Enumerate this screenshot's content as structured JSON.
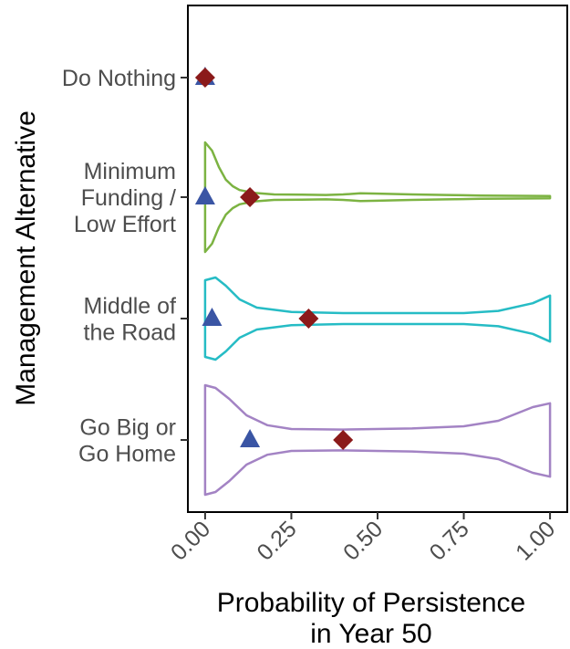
{
  "chart_data": {
    "type": "violin",
    "orientation": "horizontal",
    "xlabel": [
      "Probability of Persistence",
      "in Year 50"
    ],
    "ylabel": "Management Alternative",
    "xlim": [
      -0.05,
      1.05
    ],
    "x_ticks": [
      0.0,
      0.25,
      0.5,
      0.75,
      1.0
    ],
    "x_tick_labels": [
      "0.00",
      "0.25",
      "0.50",
      "0.75",
      "1.00"
    ],
    "grid": false,
    "categories": [
      {
        "label": [
          "Do Nothing"
        ],
        "color": "#4a5f9e",
        "median": 0.0,
        "mean": 0.0,
        "violin": []
      },
      {
        "label": [
          "Minimum",
          "Funding /",
          "Low Effort"
        ],
        "color": "#7cb342",
        "median": 0.0,
        "mean": 0.13,
        "violin": [
          [
            0.0,
            1.0
          ],
          [
            0.02,
            0.85
          ],
          [
            0.04,
            0.55
          ],
          [
            0.06,
            0.32
          ],
          [
            0.08,
            0.2
          ],
          [
            0.1,
            0.13
          ],
          [
            0.14,
            0.08
          ],
          [
            0.2,
            0.05
          ],
          [
            0.28,
            0.045
          ],
          [
            0.35,
            0.04
          ],
          [
            0.4,
            0.05
          ],
          [
            0.45,
            0.07
          ],
          [
            0.5,
            0.065
          ],
          [
            0.6,
            0.05
          ],
          [
            0.7,
            0.04
          ],
          [
            0.8,
            0.03
          ],
          [
            0.9,
            0.025
          ],
          [
            1.0,
            0.02
          ]
        ]
      },
      {
        "label": [
          "Middle of",
          "the Road"
        ],
        "color": "#26bcc5",
        "median": 0.02,
        "mean": 0.3,
        "violin": [
          [
            0.0,
            0.7
          ],
          [
            0.03,
            0.75
          ],
          [
            0.06,
            0.6
          ],
          [
            0.1,
            0.35
          ],
          [
            0.15,
            0.2
          ],
          [
            0.25,
            0.12
          ],
          [
            0.4,
            0.1
          ],
          [
            0.6,
            0.1
          ],
          [
            0.75,
            0.1
          ],
          [
            0.85,
            0.14
          ],
          [
            0.95,
            0.28
          ],
          [
            1.0,
            0.42
          ]
        ]
      },
      {
        "label": [
          "Go Big or",
          "Go Home"
        ],
        "color": "#a383c4",
        "median": 0.13,
        "mean": 0.4,
        "violin": [
          [
            0.0,
            1.0
          ],
          [
            0.03,
            0.95
          ],
          [
            0.07,
            0.75
          ],
          [
            0.12,
            0.45
          ],
          [
            0.18,
            0.27
          ],
          [
            0.25,
            0.2
          ],
          [
            0.4,
            0.19
          ],
          [
            0.6,
            0.21
          ],
          [
            0.75,
            0.25
          ],
          [
            0.85,
            0.35
          ],
          [
            0.95,
            0.6
          ],
          [
            1.0,
            0.67
          ]
        ]
      }
    ],
    "markers": {
      "median_color": "#3a55a4",
      "mean_color": "#8b1a1a"
    }
  }
}
